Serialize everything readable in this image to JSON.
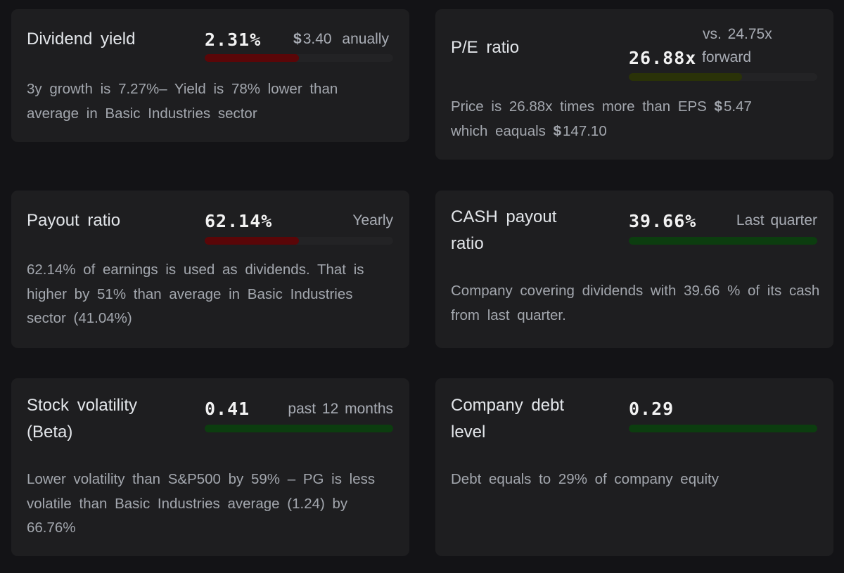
{
  "colors": {
    "red_fill": "#5a0608",
    "green_fill": "#0c3d0f",
    "olive_fill": "#2a3208"
  },
  "cards": {
    "dividend_yield": {
      "title": "Dividend yield",
      "value": "2.31%",
      "currency": "$",
      "amount": "3.40",
      "period": "anually",
      "bar_fraction": 0.5,
      "description": "3y growth is 7.27%– Yield is 78% lower than average in Basic Industries sector"
    },
    "pe_ratio": {
      "title": "P/E ratio",
      "value": "26.88x",
      "vs_text": "vs. 24.75x",
      "forward_label": "forward",
      "bar_fraction": 0.6,
      "desc_part1": "Price is 26.88x times more than EPS",
      "eps_currency": "$",
      "eps_amount": "5.47",
      "desc_part2": "which eaquals",
      "price_currency": "$",
      "price_amount": "147.10"
    },
    "payout_ratio": {
      "title": "Payout ratio",
      "value": "62.14%",
      "period": "Yearly",
      "bar_fraction": 0.5,
      "description": "62.14% of earnings is used as dividends. That is higher by 51% than average in Basic Industries sector (41.04%)"
    },
    "cash_payout_ratio": {
      "title": "CASH payout ratio",
      "value": "39.66%",
      "period": "Last quarter",
      "bar_fraction": 1.0,
      "description": "Company covering dividends with 39.66 % of its cash from last quarter."
    },
    "stock_volatility": {
      "title": "Stock volatility (Beta)",
      "value": "0.41",
      "period": "past 12 months",
      "bar_fraction": 1.0,
      "description": "Lower volatility than S&P500 by 59% – PG is less volatile than Basic Industries average (1.24) by 66.76%"
    },
    "company_debt": {
      "title": "Company debt level",
      "value": "0.29",
      "bar_fraction": 1.0,
      "description": "Debt equals to 29% of company equity"
    }
  }
}
